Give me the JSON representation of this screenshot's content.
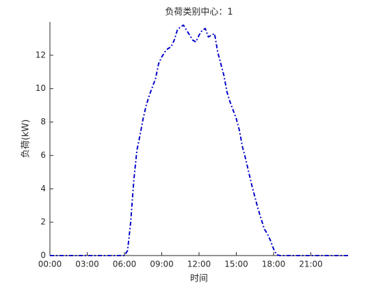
{
  "chart_data": {
    "type": "line",
    "title": "负荷类别中心：1",
    "xlabel": "时间",
    "ylabel": "负荷(kW)",
    "x": [
      0,
      5.75,
      6,
      6.25,
      6.5,
      6.75,
      7,
      7.25,
      7.5,
      7.75,
      8,
      8.25,
      8.5,
      8.75,
      9,
      9.25,
      9.5,
      9.75,
      10,
      10.25,
      10.5,
      10.75,
      11,
      11.25,
      11.5,
      11.75,
      12,
      12.25,
      12.5,
      12.75,
      13,
      13.25,
      13.5,
      13.75,
      14,
      14.25,
      14.5,
      14.75,
      15,
      15.25,
      15.5,
      15.75,
      16,
      16.25,
      16.5,
      16.75,
      17,
      17.25,
      17.5,
      17.75,
      18,
      18.25,
      18.5,
      24
    ],
    "values": [
      0,
      0,
      0,
      0.3,
      2,
      4.5,
      6.3,
      7.2,
      8.2,
      9,
      9.6,
      10.1,
      10.6,
      11.5,
      11.9,
      12.2,
      12.4,
      12.5,
      12.9,
      13.5,
      13.7,
      13.8,
      13.5,
      13.2,
      12.9,
      12.8,
      13.2,
      13.5,
      13.6,
      13.1,
      13.2,
      13.3,
      12.2,
      11.5,
      10.8,
      9.8,
      9.2,
      8.7,
      8.2,
      7.5,
      6.5,
      5.8,
      5,
      4.2,
      3.5,
      2.8,
      2.2,
      1.6,
      1.3,
      0.9,
      0.4,
      0.05,
      0,
      0
    ],
    "color": "#0000c8",
    "xlim": [
      0,
      24
    ],
    "xticks": [
      {
        "value": 0,
        "label": "00:00"
      },
      {
        "value": 3,
        "label": "03:00"
      },
      {
        "value": 6,
        "label": "06:00"
      },
      {
        "value": 9,
        "label": "09:00"
      },
      {
        "value": 12,
        "label": "12:00"
      },
      {
        "value": 15,
        "label": "15:00"
      },
      {
        "value": 18,
        "label": "18:00"
      },
      {
        "value": 21,
        "label": "21:00"
      }
    ],
    "ylim": [
      0,
      14
    ],
    "yticks": [
      0,
      2,
      4,
      6,
      8,
      10,
      12
    ]
  }
}
